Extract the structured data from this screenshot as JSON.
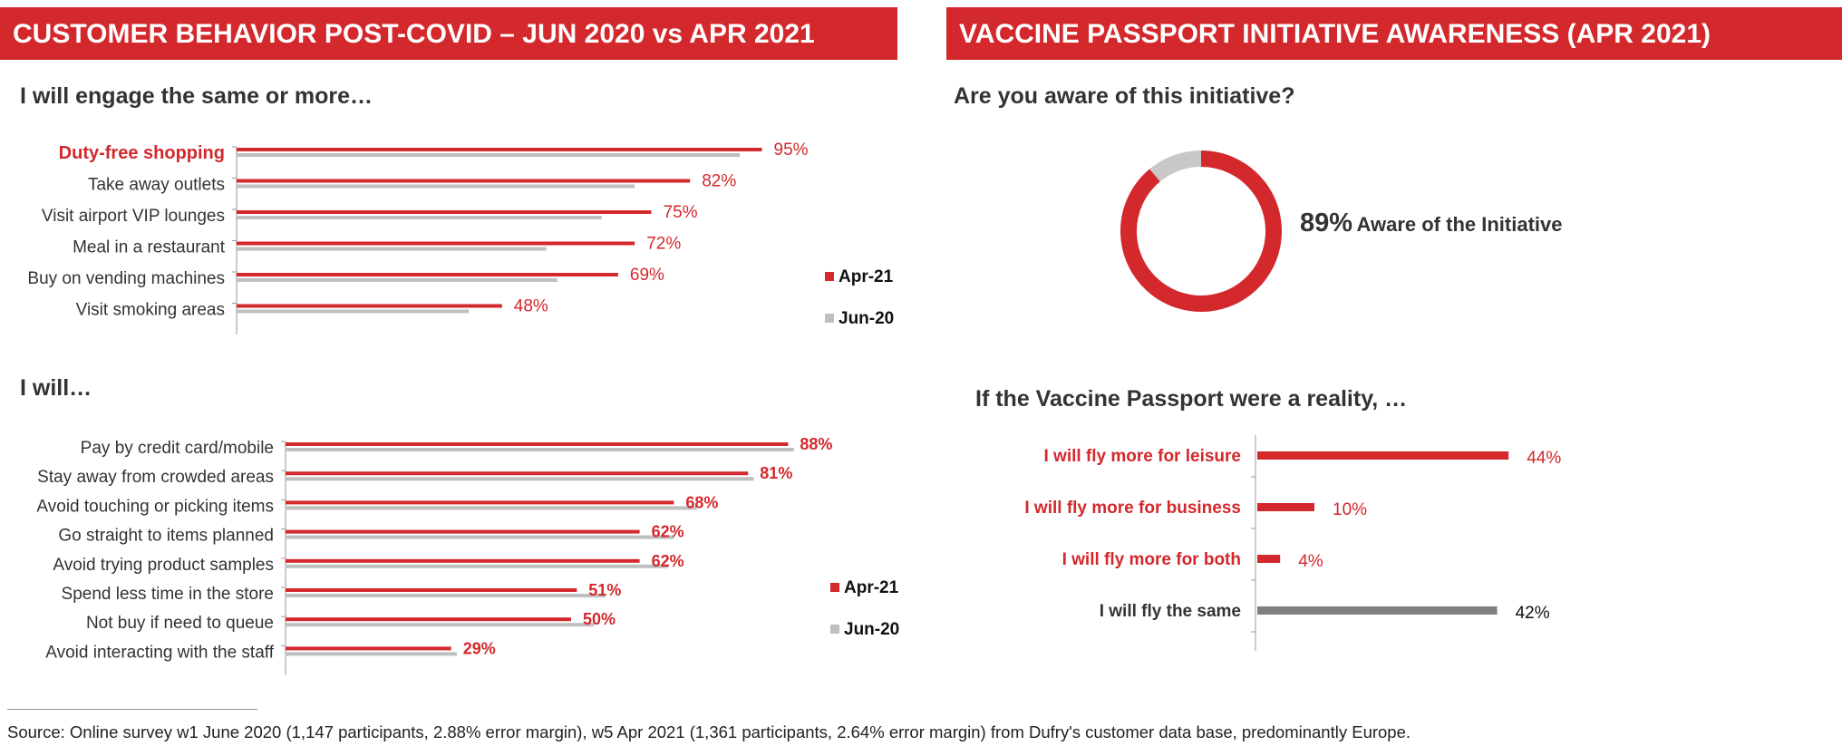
{
  "left_banner": "CUSTOMER BEHAVIOR POST-COVID – JUN 2020 vs APR 2021",
  "right_banner": "VACCINE PASSPORT INITIATIVE AWARENESS (APR 2021)",
  "engage_subtitle": "I will engage the same or more…",
  "iwill_subtitle": "I will…",
  "aware_subtitle": "Are you aware of this initiative?",
  "passport_subtitle": "If the Vaccine Passport were a reality, …",
  "donut_text": {
    "pct": "89%",
    "label": "Aware of the Initiative"
  },
  "legend": {
    "apr": "Apr-21",
    "jun": "Jun-20"
  },
  "colors": {
    "red": "#d3282c",
    "gray": "#bfbfbf",
    "dark_gray": "#808080"
  },
  "footnote": "Source: Online survey w1 June 2020 (1,147 participants, 2.88% error margin), w5 Apr 2021 (1,361 participants, 2.64% error margin) from Dufry's customer data base, predominantly Europe.",
  "chart_data": [
    {
      "type": "bar",
      "orientation": "horizontal",
      "title": "I will engage the same or more…",
      "categories": [
        "Duty-free shopping",
        "Take away outlets",
        "Visit airport VIP lounges",
        "Meal in a restaurant",
        "Buy on vending machines",
        "Visit smoking areas"
      ],
      "highlight": [
        "Duty-free shopping"
      ],
      "series": [
        {
          "name": "Apr-21",
          "values": [
            95,
            82,
            75,
            72,
            69,
            48
          ],
          "labels": [
            "95%",
            "82%",
            "75%",
            "72%",
            "69%",
            "48%"
          ],
          "color": "#d3282c"
        },
        {
          "name": "Jun-20",
          "values": [
            91,
            72,
            66,
            56,
            58,
            42
          ],
          "color": "#bfbfbf"
        }
      ],
      "legend": "right",
      "grid": false
    },
    {
      "type": "bar",
      "orientation": "horizontal",
      "title": "I will…",
      "categories": [
        "Pay by credit card/mobile",
        "Stay away from crowded areas",
        "Avoid touching or picking items",
        "Go straight to items planned",
        "Avoid trying product samples",
        "Spend less time in the store",
        "Not buy if need to queue",
        "Avoid interacting with the staff"
      ],
      "series": [
        {
          "name": "Apr-21",
          "values": [
            88,
            81,
            68,
            62,
            62,
            51,
            50,
            29
          ],
          "labels": [
            "88%",
            "81%",
            "68%",
            "62%",
            "62%",
            "51%",
            "50%",
            "29%"
          ],
          "color": "#d3282c"
        },
        {
          "name": "Jun-20",
          "values": [
            89,
            82,
            72,
            68,
            67,
            56,
            54,
            30
          ],
          "color": "#bfbfbf"
        }
      ],
      "legend": "right",
      "grid": false
    },
    {
      "type": "pie",
      "variant": "donut",
      "title": "Are you aware of this initiative?",
      "slices": [
        {
          "value": 89,
          "color": "#d3282c"
        },
        {
          "value": 11,
          "color": "#c8c8c8"
        }
      ]
    },
    {
      "type": "bar",
      "orientation": "horizontal",
      "title": "If the Vaccine Passport were a reality, …",
      "categories": [
        "I will fly more for leisure",
        "I will fly more for business",
        "I will fly more for both",
        "I will fly the same"
      ],
      "values": [
        44,
        10,
        4,
        42
      ],
      "labels": [
        "44%",
        "10%",
        "4%",
        "42%"
      ],
      "colors": [
        "#d3282c",
        "#d3282c",
        "#d3282c",
        "#808080"
      ],
      "grid": false
    }
  ]
}
